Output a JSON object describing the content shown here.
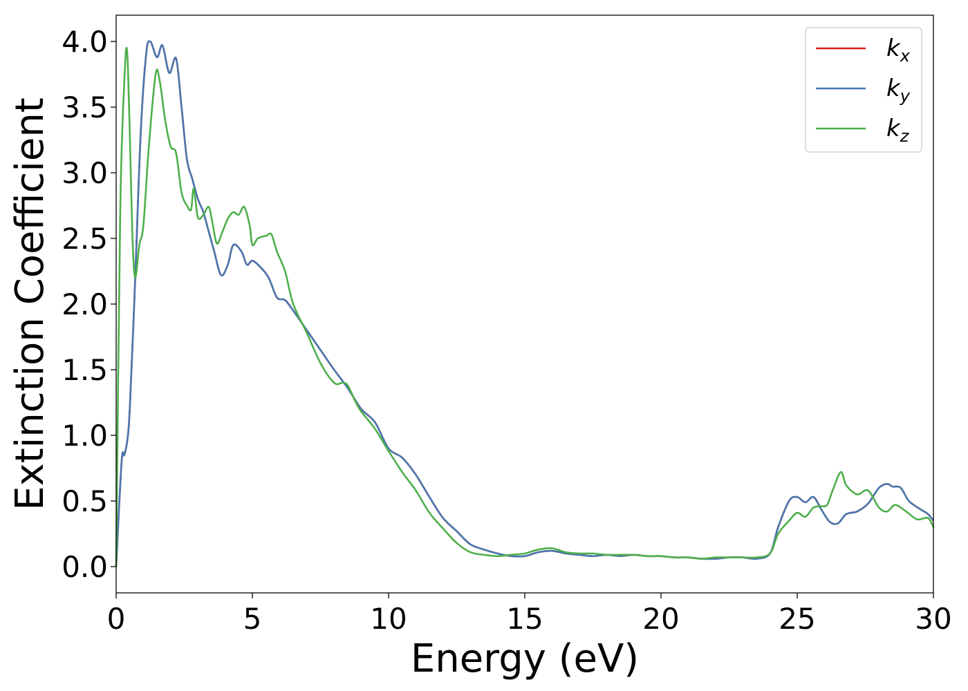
{
  "chart_data": {
    "type": "line",
    "title": "",
    "xlabel": "Energy (eV)",
    "ylabel": "Extinction Coefficient",
    "xlim": [
      0,
      30
    ],
    "ylim": [
      -0.2,
      4.2
    ],
    "xticks": [
      0,
      5,
      10,
      15,
      20,
      25,
      30
    ],
    "xtick_labels": [
      "0",
      "5",
      "10",
      "15",
      "20",
      "25",
      "30"
    ],
    "yticks": [
      0.0,
      0.5,
      1.0,
      1.5,
      2.0,
      2.5,
      3.0,
      3.5,
      4.0
    ],
    "ytick_labels": [
      "0.0",
      "0.5",
      "1.0",
      "1.5",
      "2.0",
      "2.5",
      "3.0",
      "3.5",
      "4.0"
    ],
    "grid": false,
    "legend_position": "top-right",
    "series": [
      {
        "name": "k",
        "sub": "x",
        "color": "#e41a1c",
        "x": [
          0,
          0.2,
          0.3,
          0.4,
          0.5,
          0.7,
          0.9,
          1.1,
          1.25,
          1.5,
          1.7,
          1.95,
          2.2,
          2.4,
          2.6,
          2.8,
          3.0,
          3.2,
          3.4,
          3.6,
          3.85,
          4.1,
          4.3,
          4.6,
          4.8,
          5.0,
          5.3,
          5.6,
          5.9,
          6.2,
          6.5,
          7.0,
          7.5,
          8.0,
          8.5,
          9.0,
          9.5,
          10.0,
          10.5,
          11.0,
          11.5,
          12.0,
          12.5,
          13.0,
          13.5,
          14.0,
          14.5,
          15.0,
          15.5,
          16.0,
          16.5,
          17.0,
          17.5,
          18.0,
          18.5,
          19.0,
          19.5,
          20.0,
          20.5,
          21.0,
          21.5,
          22.0,
          22.5,
          23.0,
          23.5,
          24.0,
          24.3,
          24.7,
          25.0,
          25.3,
          25.6,
          25.9,
          26.2,
          26.5,
          26.8,
          27.2,
          27.6,
          28.0,
          28.3,
          28.5,
          28.8,
          29.1,
          29.5,
          29.8,
          30.0
        ],
        "y": [
          0.0,
          0.8,
          0.85,
          0.95,
          1.2,
          2.2,
          3.3,
          3.9,
          4.0,
          3.88,
          3.97,
          3.76,
          3.87,
          3.5,
          3.1,
          2.95,
          2.8,
          2.7,
          2.55,
          2.4,
          2.22,
          2.3,
          2.45,
          2.4,
          2.3,
          2.33,
          2.28,
          2.2,
          2.05,
          2.03,
          1.95,
          1.8,
          1.65,
          1.5,
          1.36,
          1.2,
          1.1,
          0.9,
          0.83,
          0.7,
          0.53,
          0.37,
          0.27,
          0.17,
          0.13,
          0.1,
          0.08,
          0.08,
          0.11,
          0.12,
          0.1,
          0.09,
          0.08,
          0.09,
          0.08,
          0.09,
          0.08,
          0.08,
          0.07,
          0.07,
          0.06,
          0.06,
          0.07,
          0.07,
          0.06,
          0.1,
          0.3,
          0.5,
          0.53,
          0.49,
          0.53,
          0.43,
          0.34,
          0.33,
          0.4,
          0.42,
          0.48,
          0.6,
          0.63,
          0.61,
          0.6,
          0.5,
          0.44,
          0.4,
          0.35
        ]
      },
      {
        "name": "k",
        "sub": "y",
        "color": "#4878b0",
        "x": [
          0,
          0.2,
          0.3,
          0.4,
          0.5,
          0.7,
          0.9,
          1.1,
          1.25,
          1.5,
          1.7,
          1.95,
          2.2,
          2.4,
          2.6,
          2.8,
          3.0,
          3.2,
          3.4,
          3.6,
          3.85,
          4.1,
          4.3,
          4.6,
          4.8,
          5.0,
          5.3,
          5.6,
          5.9,
          6.2,
          6.5,
          7.0,
          7.5,
          8.0,
          8.5,
          9.0,
          9.5,
          10.0,
          10.5,
          11.0,
          11.5,
          12.0,
          12.5,
          13.0,
          13.5,
          14.0,
          14.5,
          15.0,
          15.5,
          16.0,
          16.5,
          17.0,
          17.5,
          18.0,
          18.5,
          19.0,
          19.5,
          20.0,
          20.5,
          21.0,
          21.5,
          22.0,
          22.5,
          23.0,
          23.5,
          24.0,
          24.3,
          24.7,
          25.0,
          25.3,
          25.6,
          25.9,
          26.2,
          26.5,
          26.8,
          27.2,
          27.6,
          28.0,
          28.3,
          28.5,
          28.8,
          29.1,
          29.5,
          29.8,
          30.0
        ],
        "y": [
          0.0,
          0.8,
          0.85,
          0.95,
          1.2,
          2.2,
          3.3,
          3.9,
          4.0,
          3.88,
          3.97,
          3.76,
          3.87,
          3.5,
          3.1,
          2.95,
          2.8,
          2.7,
          2.55,
          2.4,
          2.22,
          2.3,
          2.45,
          2.4,
          2.3,
          2.33,
          2.28,
          2.2,
          2.05,
          2.03,
          1.95,
          1.8,
          1.65,
          1.5,
          1.36,
          1.2,
          1.1,
          0.9,
          0.83,
          0.7,
          0.53,
          0.37,
          0.27,
          0.17,
          0.13,
          0.1,
          0.08,
          0.08,
          0.11,
          0.12,
          0.1,
          0.09,
          0.08,
          0.09,
          0.08,
          0.09,
          0.08,
          0.08,
          0.07,
          0.07,
          0.06,
          0.06,
          0.07,
          0.07,
          0.06,
          0.1,
          0.3,
          0.5,
          0.53,
          0.49,
          0.53,
          0.43,
          0.34,
          0.33,
          0.4,
          0.42,
          0.48,
          0.6,
          0.63,
          0.61,
          0.6,
          0.5,
          0.44,
          0.4,
          0.35
        ]
      },
      {
        "name": "k",
        "sub": "z",
        "color": "#4daf4a",
        "x": [
          0,
          0.15,
          0.3,
          0.4,
          0.5,
          0.6,
          0.7,
          0.85,
          1.0,
          1.2,
          1.45,
          1.6,
          1.8,
          2.0,
          2.2,
          2.4,
          2.6,
          2.75,
          2.85,
          3.0,
          3.2,
          3.4,
          3.55,
          3.7,
          3.9,
          4.1,
          4.3,
          4.5,
          4.7,
          4.9,
          5.0,
          5.2,
          5.5,
          5.7,
          5.9,
          6.2,
          6.5,
          7.0,
          7.5,
          8.0,
          8.3,
          8.5,
          8.8,
          9.0,
          9.5,
          10.0,
          10.5,
          11.0,
          11.5,
          12.0,
          12.5,
          13.0,
          13.5,
          14.0,
          14.5,
          15.0,
          15.5,
          16.0,
          16.5,
          17.0,
          17.5,
          18.0,
          18.5,
          19.0,
          19.5,
          20.0,
          20.5,
          21.0,
          21.5,
          22.0,
          22.5,
          23.0,
          23.5,
          24.0,
          24.3,
          24.7,
          25.0,
          25.3,
          25.6,
          25.9,
          26.1,
          26.3,
          26.6,
          26.8,
          27.2,
          27.6,
          28.0,
          28.3,
          28.6,
          29.0,
          29.4,
          29.8,
          30.0
        ],
        "y": [
          0.0,
          2.7,
          3.7,
          3.93,
          3.3,
          2.5,
          2.2,
          2.45,
          2.6,
          3.2,
          3.75,
          3.7,
          3.4,
          3.2,
          3.15,
          2.85,
          2.75,
          2.72,
          2.88,
          2.66,
          2.68,
          2.74,
          2.6,
          2.46,
          2.55,
          2.65,
          2.7,
          2.68,
          2.74,
          2.6,
          2.45,
          2.5,
          2.52,
          2.53,
          2.4,
          2.25,
          2.0,
          1.78,
          1.55,
          1.4,
          1.4,
          1.38,
          1.25,
          1.18,
          1.05,
          0.88,
          0.72,
          0.58,
          0.41,
          0.29,
          0.18,
          0.11,
          0.09,
          0.08,
          0.09,
          0.1,
          0.13,
          0.14,
          0.11,
          0.1,
          0.1,
          0.09,
          0.09,
          0.09,
          0.08,
          0.08,
          0.07,
          0.07,
          0.06,
          0.07,
          0.07,
          0.07,
          0.07,
          0.1,
          0.25,
          0.35,
          0.41,
          0.38,
          0.45,
          0.46,
          0.47,
          0.58,
          0.72,
          0.62,
          0.55,
          0.58,
          0.45,
          0.42,
          0.47,
          0.42,
          0.36,
          0.37,
          0.3
        ]
      }
    ]
  }
}
